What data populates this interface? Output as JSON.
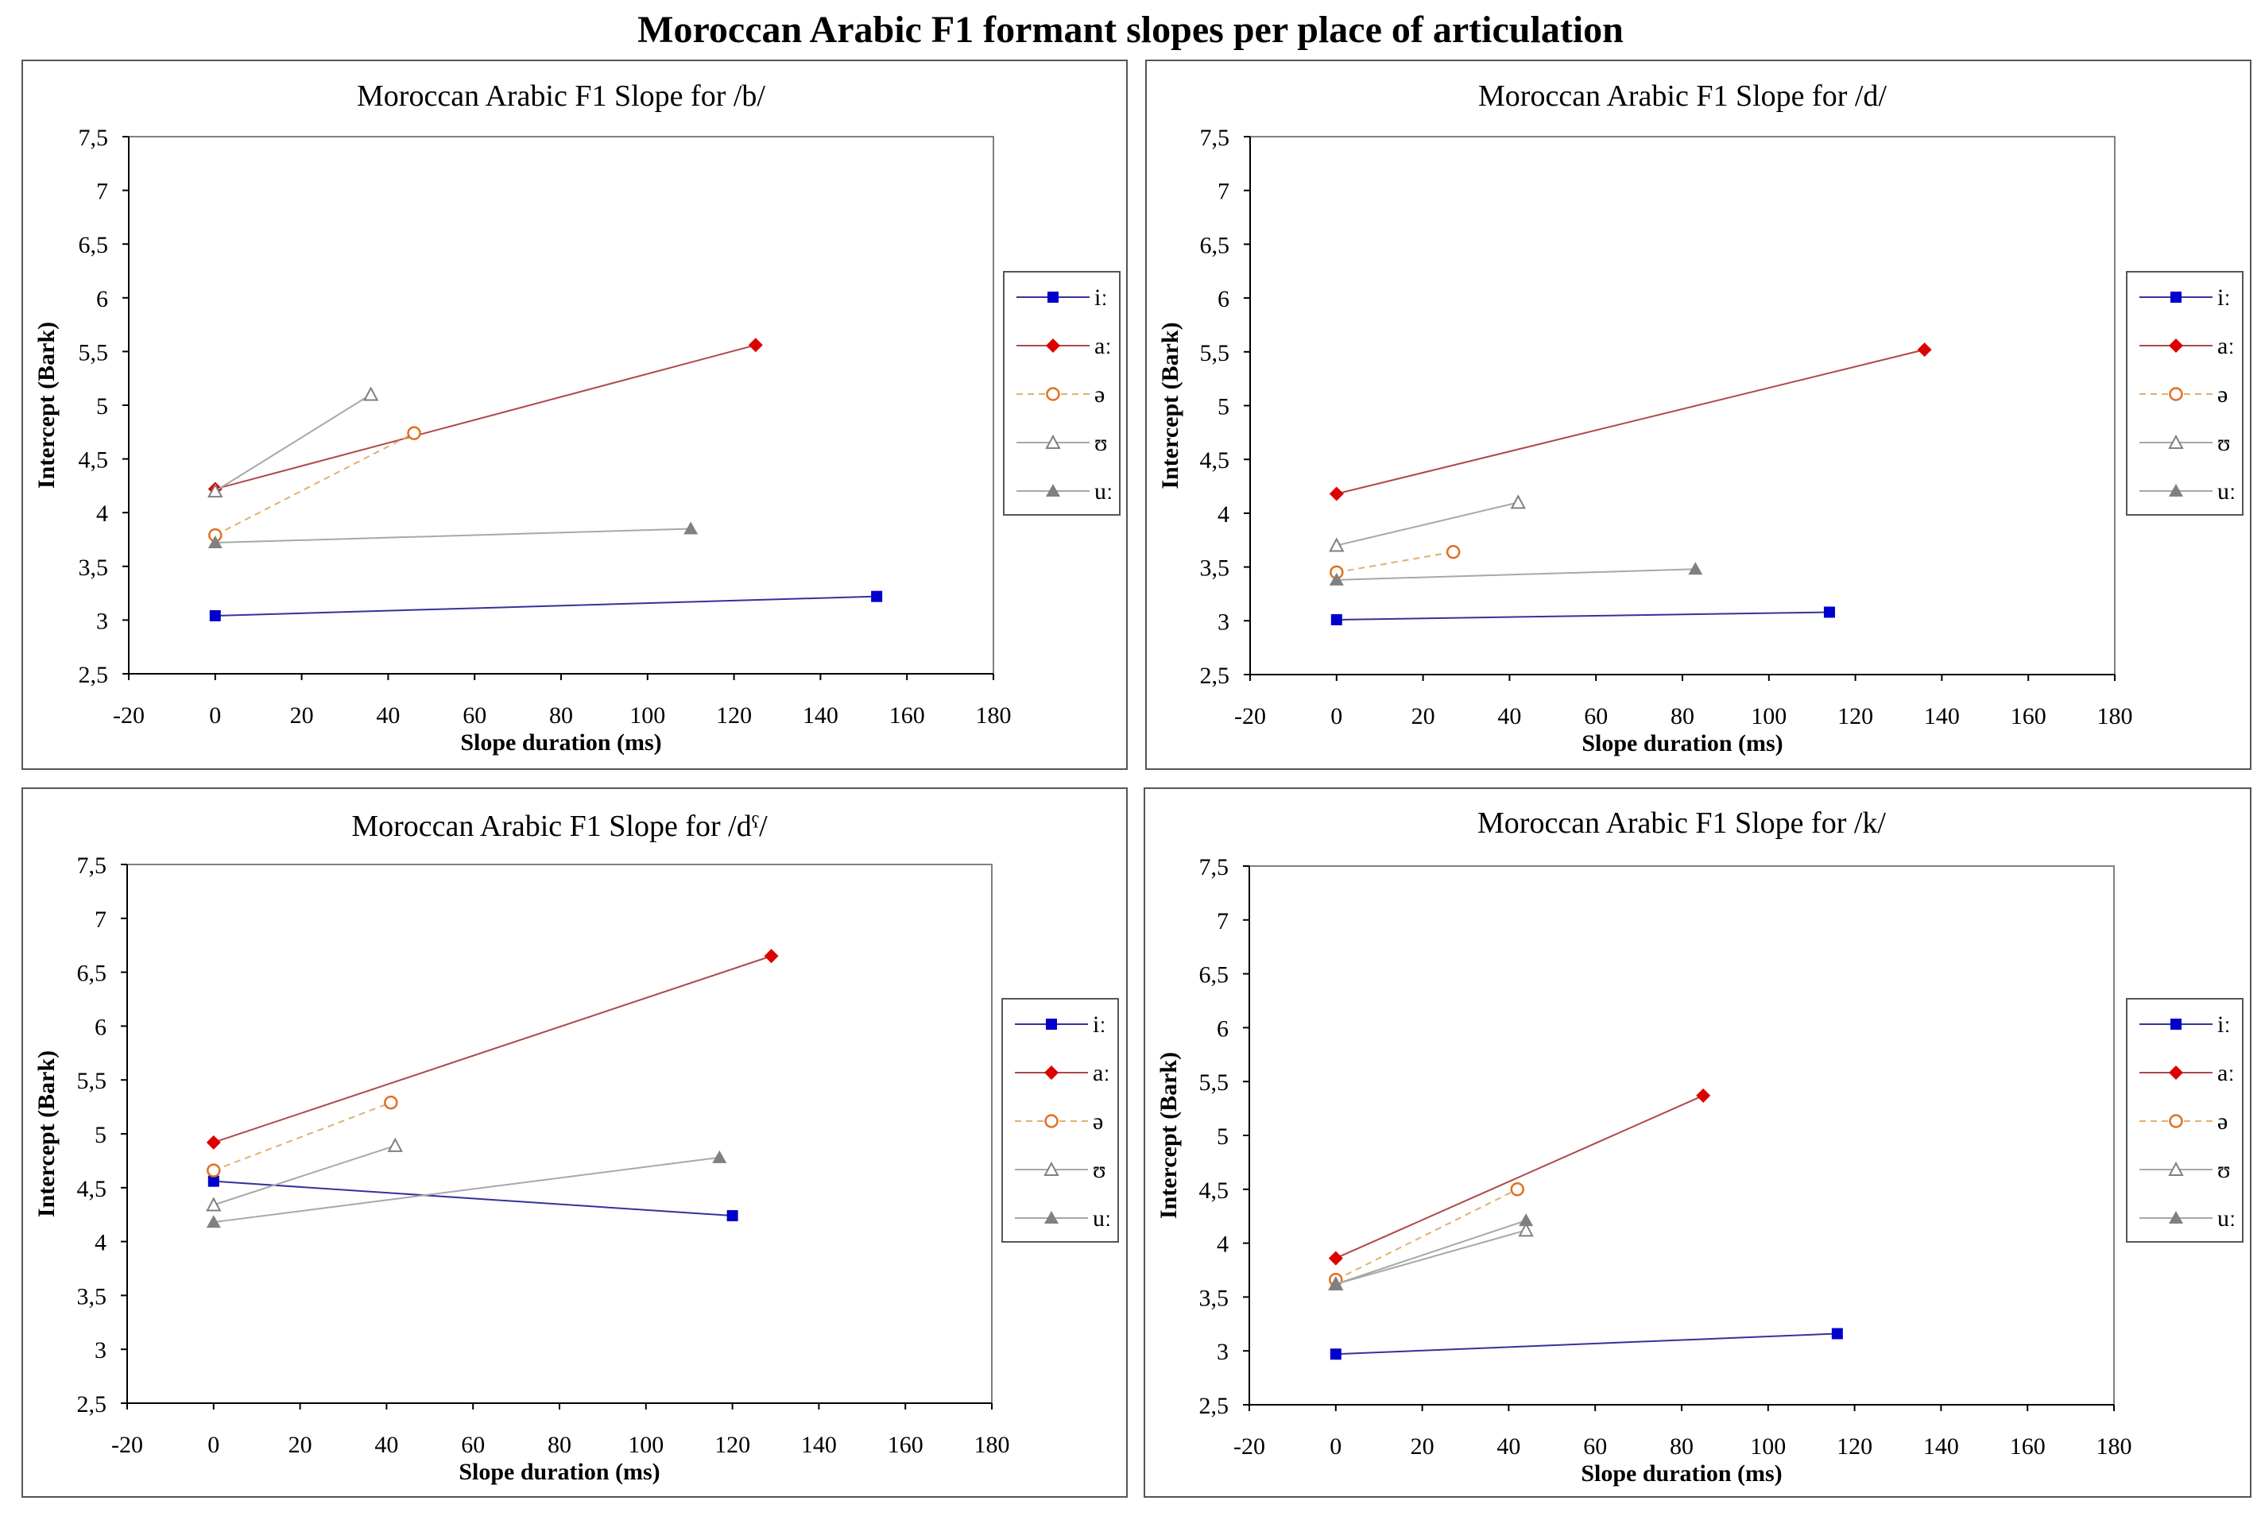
{
  "title": "Moroccan Arabic F1 formant slopes per place of articulation",
  "legend_labels": [
    "iː",
    "aː",
    "ə",
    "ʊ",
    "uː"
  ],
  "series_styles": [
    {
      "color": "#0000CC",
      "line": "#33339A",
      "marker": "square",
      "dash": false
    },
    {
      "color": "#DD0000",
      "line": "#B04848",
      "marker": "diamond",
      "dash": false
    },
    {
      "color": "#E07020",
      "line": "#E0B070",
      "marker": "circle-open",
      "dash": true
    },
    {
      "color": "#808080",
      "line": "#A8A8A8",
      "marker": "triangle-open",
      "dash": false
    },
    {
      "color": "#808080",
      "line": "#A8A8A8",
      "marker": "triangle-filled",
      "dash": false
    }
  ],
  "chart_data": [
    {
      "type": "line",
      "title": "Moroccan Arabic F1 Slope for /b/",
      "xlabel": "Slope duration (ms)",
      "ylabel": "Intercept (Bark)",
      "xlim": [
        -20,
        180
      ],
      "ylim": [
        2.5,
        7.5
      ],
      "xticks": [
        "-20",
        "0",
        "20",
        "40",
        "60",
        "80",
        "100",
        "120",
        "140",
        "160",
        "180"
      ],
      "yticks": [
        "7,5",
        "7",
        "6,5",
        "6",
        "5,5",
        "5",
        "4,5",
        "4",
        "3,5",
        "3",
        "2,5"
      ],
      "series": [
        {
          "name": "iː",
          "x": [
            0,
            153
          ],
          "y": [
            3.04,
            3.22
          ]
        },
        {
          "name": "aː",
          "x": [
            0,
            125
          ],
          "y": [
            4.22,
            5.56
          ]
        },
        {
          "name": "ə",
          "x": [
            0,
            46
          ],
          "y": [
            3.79,
            4.74
          ]
        },
        {
          "name": "ʊ",
          "x": [
            0,
            36
          ],
          "y": [
            4.2,
            5.1
          ]
        },
        {
          "name": "uː",
          "x": [
            0,
            110
          ],
          "y": [
            3.72,
            3.85
          ]
        }
      ]
    },
    {
      "type": "line",
      "title": "Moroccan Arabic F1 Slope for /d/",
      "xlabel": "Slope duration (ms)",
      "ylabel": "Intercept (Bark)",
      "xlim": [
        -20,
        180
      ],
      "ylim": [
        2.5,
        7.5
      ],
      "xticks": [
        "-20",
        "0",
        "20",
        "40",
        "60",
        "80",
        "100",
        "120",
        "140",
        "160",
        "180"
      ],
      "yticks": [
        "7,5",
        "7",
        "6,5",
        "6",
        "5,5",
        "5",
        "4,5",
        "4",
        "3,5",
        "3",
        "2,5"
      ],
      "series": [
        {
          "name": "iː",
          "x": [
            0,
            114
          ],
          "y": [
            3.01,
            3.08
          ]
        },
        {
          "name": "aː",
          "x": [
            0,
            136
          ],
          "y": [
            4.18,
            5.52
          ]
        },
        {
          "name": "ə",
          "x": [
            0,
            27
          ],
          "y": [
            3.45,
            3.64
          ]
        },
        {
          "name": "ʊ",
          "x": [
            0,
            42
          ],
          "y": [
            3.7,
            4.1
          ]
        },
        {
          "name": "uː",
          "x": [
            0,
            83
          ],
          "y": [
            3.38,
            3.48
          ]
        }
      ]
    },
    {
      "type": "line",
      "title": "Moroccan Arabic F1 Slope for /dˤ/",
      "xlabel": "Slope duration (ms)",
      "ylabel": "Intercept (Bark)",
      "xlim": [
        -20,
        180
      ],
      "ylim": [
        2.5,
        7.5
      ],
      "xticks": [
        "-20",
        "0",
        "20",
        "40",
        "60",
        "80",
        "100",
        "120",
        "140",
        "160",
        "180"
      ],
      "yticks": [
        "7,5",
        "7",
        "6,5",
        "6",
        "5,5",
        "5",
        "4,5",
        "4",
        "3,5",
        "3",
        "2,5"
      ],
      "series": [
        {
          "name": "iː",
          "x": [
            0,
            120
          ],
          "y": [
            4.56,
            4.24
          ]
        },
        {
          "name": "aː",
          "x": [
            0,
            129
          ],
          "y": [
            4.92,
            6.65
          ]
        },
        {
          "name": "ə",
          "x": [
            0,
            41
          ],
          "y": [
            4.66,
            5.29
          ]
        },
        {
          "name": "ʊ",
          "x": [
            0,
            42
          ],
          "y": [
            4.34,
            4.89
          ]
        },
        {
          "name": "uː",
          "x": [
            0,
            117
          ],
          "y": [
            4.18,
            4.78
          ]
        }
      ]
    },
    {
      "type": "line",
      "title": "Moroccan Arabic F1 Slope for /k/",
      "xlabel": "Slope duration (ms)",
      "ylabel": "Intercept (Bark)",
      "xlim": [
        -20,
        180
      ],
      "ylim": [
        2.5,
        7.5
      ],
      "xticks": [
        "-20",
        "0",
        "20",
        "40",
        "60",
        "80",
        "100",
        "120",
        "140",
        "160",
        "180"
      ],
      "yticks": [
        "7,5",
        "7",
        "6,5",
        "6",
        "5,5",
        "5",
        "4,5",
        "4",
        "3,5",
        "3",
        "2,5"
      ],
      "series": [
        {
          "name": "iː",
          "x": [
            0,
            116
          ],
          "y": [
            2.97,
            3.16
          ]
        },
        {
          "name": "aː",
          "x": [
            0,
            85
          ],
          "y": [
            3.86,
            5.37
          ]
        },
        {
          "name": "ə",
          "x": [
            0,
            42
          ],
          "y": [
            3.66,
            4.5
          ]
        },
        {
          "name": "ʊ",
          "x": [
            0,
            44
          ],
          "y": [
            3.62,
            4.12
          ]
        },
        {
          "name": "uː",
          "x": [
            0,
            44
          ],
          "y": [
            3.62,
            4.21
          ]
        }
      ]
    }
  ]
}
